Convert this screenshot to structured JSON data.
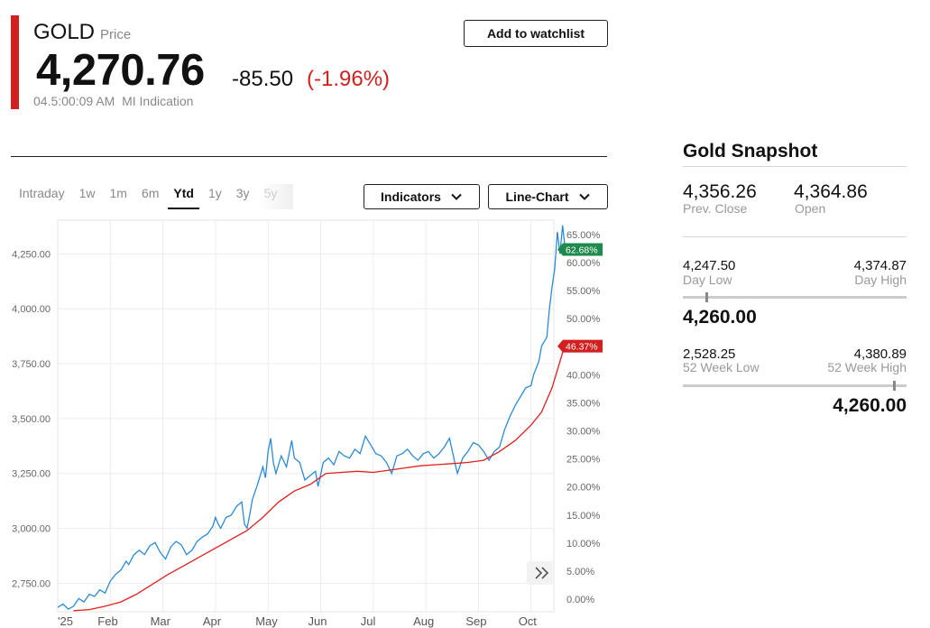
{
  "quote": {
    "symbol": "GOLD",
    "type_label": "Price",
    "price": "4,270.76",
    "change": "-85.50",
    "change_pct": "(-1.96%)",
    "timestamp": "04.5:00:09 AM",
    "source": "MI Indication",
    "watchlist_label": "Add to watchlist",
    "accent_color": "#d21f1f"
  },
  "chart_controls": {
    "ranges": [
      "Intraday",
      "1w",
      "1m",
      "6m",
      "Ytd",
      "1y",
      "3y",
      "5y"
    ],
    "active_range": "Ytd",
    "indicators_label": "Indicators",
    "chart_type_label": "Line-Chart",
    "chevron_icon": "chevron-down-icon",
    "expand_icon": "double-chevron-right-icon"
  },
  "chart_data": {
    "type": "line",
    "x_ticks": [
      "'25",
      "Feb",
      "Mar",
      "Apr",
      "May",
      "Jun",
      "Jul",
      "Aug",
      "Sep",
      "Oct"
    ],
    "y_left_ticks": [
      "4,250.00",
      "4,000.00",
      "3,750.00",
      "3,500.00",
      "3,250.00",
      "3,000.00",
      "2,750.00"
    ],
    "y_left_values": [
      4250,
      4000,
      3750,
      3500,
      3250,
      3000,
      2750
    ],
    "y_right_ticks": [
      "65.00%",
      "60.00%",
      "55.00%",
      "50.00%",
      "45.00%",
      "40.00%",
      "35.00%",
      "30.00%",
      "25.00%",
      "20.00%",
      "15.00%",
      "10.00%",
      "5.00%",
      "0.00%"
    ],
    "ylim": [
      2620,
      4420
    ],
    "end_labels": [
      {
        "text": "62.68%",
        "color": "#1e8a4c",
        "y": 4270
      },
      {
        "text": "46.37%",
        "color": "#d21f1f",
        "y": 3830
      }
    ],
    "series": [
      {
        "color": "#2b8ad8",
        "values": [
          [
            0,
            2640
          ],
          [
            0.1,
            2655
          ],
          [
            0.2,
            2632
          ],
          [
            0.3,
            2645
          ],
          [
            0.4,
            2680
          ],
          [
            0.5,
            2665
          ],
          [
            0.6,
            2700
          ],
          [
            0.7,
            2690
          ],
          [
            0.8,
            2720
          ],
          [
            0.9,
            2705
          ],
          [
            1.0,
            2760
          ],
          [
            1.1,
            2790
          ],
          [
            1.2,
            2810
          ],
          [
            1.3,
            2850
          ],
          [
            1.35,
            2835
          ],
          [
            1.45,
            2880
          ],
          [
            1.55,
            2900
          ],
          [
            1.65,
            2880
          ],
          [
            1.75,
            2920
          ],
          [
            1.85,
            2935
          ],
          [
            1.95,
            2890
          ],
          [
            2.05,
            2860
          ],
          [
            2.15,
            2915
          ],
          [
            2.25,
            2940
          ],
          [
            2.35,
            2925
          ],
          [
            2.45,
            2880
          ],
          [
            2.55,
            2900
          ],
          [
            2.65,
            2940
          ],
          [
            2.75,
            2960
          ],
          [
            2.85,
            2975
          ],
          [
            2.95,
            3010
          ],
          [
            3.0,
            3050
          ],
          [
            3.05,
            3020
          ],
          [
            3.1,
            3000
          ],
          [
            3.2,
            3050
          ],
          [
            3.3,
            3060
          ],
          [
            3.4,
            3100
          ],
          [
            3.5,
            3120
          ],
          [
            3.55,
            3020
          ],
          [
            3.6,
            3000
          ],
          [
            3.65,
            3060
          ],
          [
            3.7,
            3130
          ],
          [
            3.8,
            3200
          ],
          [
            3.9,
            3280
          ],
          [
            3.95,
            3230
          ],
          [
            4.0,
            3350
          ],
          [
            4.05,
            3410
          ],
          [
            4.1,
            3300
          ],
          [
            4.15,
            3250
          ],
          [
            4.25,
            3330
          ],
          [
            4.35,
            3280
          ],
          [
            4.45,
            3400
          ],
          [
            4.5,
            3320
          ],
          [
            4.6,
            3300
          ],
          [
            4.7,
            3220
          ],
          [
            4.8,
            3240
          ],
          [
            4.9,
            3260
          ],
          [
            4.95,
            3190
          ],
          [
            5.05,
            3300
          ],
          [
            5.15,
            3320
          ],
          [
            5.25,
            3290
          ],
          [
            5.35,
            3350
          ],
          [
            5.45,
            3330
          ],
          [
            5.55,
            3320
          ],
          [
            5.65,
            3360
          ],
          [
            5.75,
            3340
          ],
          [
            5.85,
            3420
          ],
          [
            5.95,
            3380
          ],
          [
            6.05,
            3340
          ],
          [
            6.15,
            3330
          ],
          [
            6.25,
            3300
          ],
          [
            6.35,
            3250
          ],
          [
            6.45,
            3330
          ],
          [
            6.55,
            3340
          ],
          [
            6.65,
            3360
          ],
          [
            6.75,
            3330
          ],
          [
            6.85,
            3310
          ],
          [
            6.95,
            3340
          ],
          [
            7.05,
            3350
          ],
          [
            7.15,
            3320
          ],
          [
            7.25,
            3340
          ],
          [
            7.35,
            3370
          ],
          [
            7.45,
            3410
          ],
          [
            7.55,
            3300
          ],
          [
            7.6,
            3250
          ],
          [
            7.7,
            3320
          ],
          [
            7.8,
            3350
          ],
          [
            7.9,
            3390
          ],
          [
            8.0,
            3380
          ],
          [
            8.1,
            3350
          ],
          [
            8.2,
            3310
          ],
          [
            8.3,
            3350
          ],
          [
            8.4,
            3370
          ],
          [
            8.5,
            3450
          ],
          [
            8.6,
            3510
          ],
          [
            8.7,
            3560
          ],
          [
            8.8,
            3600
          ],
          [
            8.9,
            3640
          ],
          [
            9.0,
            3650
          ],
          [
            9.05,
            3700
          ],
          [
            9.15,
            3760
          ],
          [
            9.2,
            3830
          ],
          [
            9.3,
            3870
          ],
          [
            9.35,
            4000
          ],
          [
            9.4,
            4100
          ],
          [
            9.45,
            4180
          ],
          [
            9.5,
            4350
          ],
          [
            9.55,
            4250
          ],
          [
            9.6,
            4380
          ],
          [
            9.65,
            4270
          ]
        ]
      },
      {
        "color": "#e01f1f",
        "values": [
          [
            0.3,
            2625
          ],
          [
            0.6,
            2630
          ],
          [
            0.9,
            2645
          ],
          [
            1.2,
            2665
          ],
          [
            1.5,
            2700
          ],
          [
            1.8,
            2745
          ],
          [
            2.1,
            2790
          ],
          [
            2.4,
            2830
          ],
          [
            2.7,
            2870
          ],
          [
            3.0,
            2910
          ],
          [
            3.3,
            2950
          ],
          [
            3.6,
            2990
          ],
          [
            3.9,
            3050
          ],
          [
            4.2,
            3120
          ],
          [
            4.5,
            3170
          ],
          [
            4.8,
            3200
          ],
          [
            5.1,
            3250
          ],
          [
            5.4,
            3255
          ],
          [
            5.7,
            3260
          ],
          [
            6.0,
            3255
          ],
          [
            6.3,
            3265
          ],
          [
            6.6,
            3275
          ],
          [
            6.9,
            3285
          ],
          [
            7.2,
            3290
          ],
          [
            7.5,
            3295
          ],
          [
            7.8,
            3300
          ],
          [
            8.1,
            3310
          ],
          [
            8.4,
            3350
          ],
          [
            8.7,
            3400
          ],
          [
            9.0,
            3470
          ],
          [
            9.2,
            3530
          ],
          [
            9.4,
            3640
          ],
          [
            9.6,
            3800
          ],
          [
            9.65,
            3830
          ]
        ]
      }
    ]
  },
  "snapshot": {
    "title": "Gold Snapshot",
    "prev_close_value": "4,356.26",
    "prev_close_label": "Prev. Close",
    "open_value": "4,364.86",
    "open_label": "Open",
    "day_low_value": "4,247.50",
    "day_low_label": "Day Low",
    "day_high_value": "4,374.87",
    "day_high_label": "Day High",
    "day_current": "4,260.00",
    "day_position": 0.1,
    "wk52_low_value": "2,528.25",
    "wk52_low_label": "52 Week Low",
    "wk52_high_value": "4,380.89",
    "wk52_high_label": "52 Week High",
    "wk52_current": "4,260.00",
    "wk52_position": 0.94
  }
}
